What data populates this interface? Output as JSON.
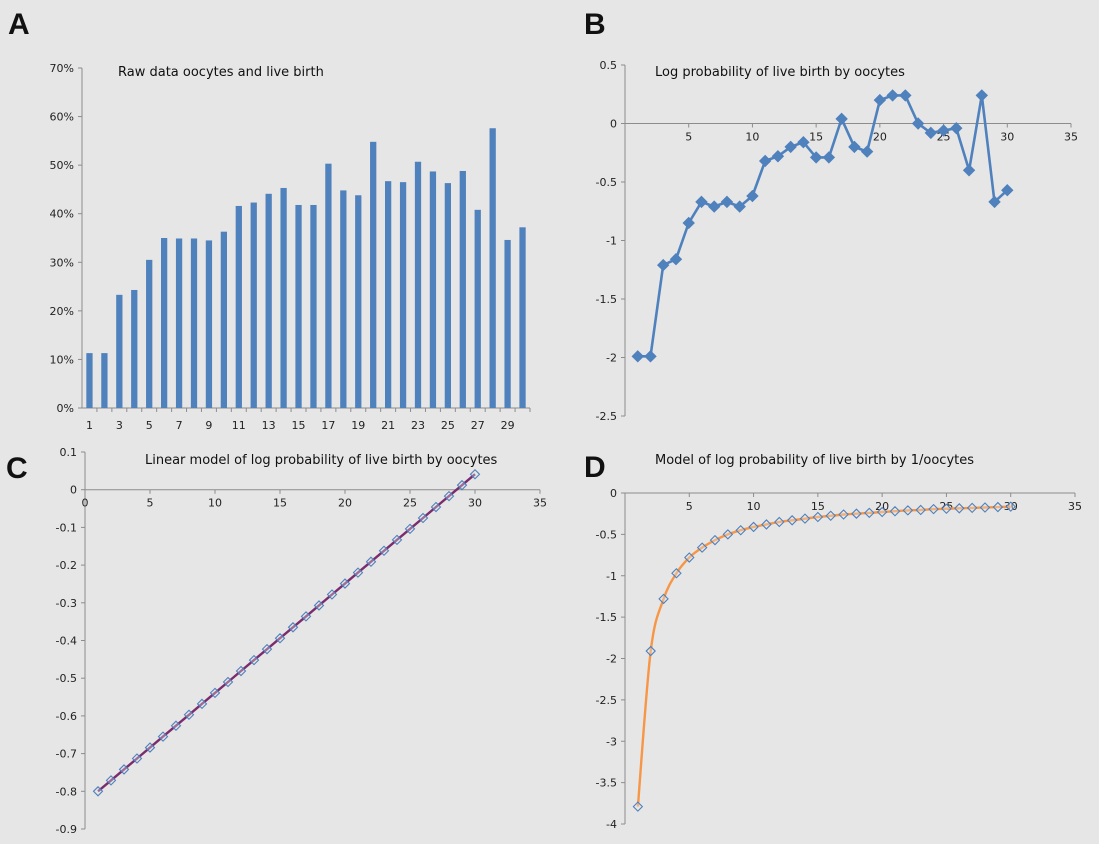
{
  "chart_data": [
    {
      "panel": "A",
      "type": "bar",
      "title": "Raw data oocytes and live birth",
      "xlabel": "",
      "ylabel": "",
      "ylim": [
        0,
        0.7
      ],
      "yticks": [
        "0%",
        "10%",
        "20%",
        "30%",
        "40%",
        "50%",
        "60%",
        "70%"
      ],
      "categories": [
        1,
        2,
        3,
        4,
        5,
        6,
        7,
        8,
        9,
        10,
        11,
        12,
        13,
        14,
        15,
        16,
        17,
        18,
        19,
        20,
        21,
        22,
        23,
        24,
        25,
        26,
        27,
        28,
        29,
        30
      ],
      "x_tick_labels": [
        "1",
        "3",
        "5",
        "7",
        "9",
        "11",
        "13",
        "15",
        "17",
        "19",
        "21",
        "23",
        "25",
        "27",
        "29"
      ],
      "values": [
        0.113,
        0.113,
        0.233,
        0.243,
        0.305,
        0.35,
        0.349,
        0.349,
        0.345,
        0.363,
        0.416,
        0.423,
        0.441,
        0.453,
        0.418,
        0.418,
        0.503,
        0.448,
        0.438,
        0.548,
        0.467,
        0.465,
        0.507,
        0.487,
        0.463,
        0.488,
        0.408,
        0.576,
        0.346,
        0.372
      ],
      "color": "#4f81bd",
      "grid": false
    },
    {
      "panel": "B",
      "type": "line",
      "title": "Log probability of live birth by oocytes",
      "xlabel": "",
      "ylabel": "",
      "xlim": [
        0,
        35
      ],
      "ylim": [
        -2.5,
        0.5
      ],
      "xticks": [
        5,
        10,
        15,
        20,
        25,
        30,
        35
      ],
      "yticks": [
        -2.5,
        -2,
        -1.5,
        -1,
        -0.5,
        0,
        0.5
      ],
      "series": [
        {
          "x": [
            1,
            2,
            3,
            4,
            5,
            6,
            7,
            8,
            9,
            10,
            11,
            12,
            13,
            14,
            15,
            16,
            17,
            18,
            19,
            20,
            21,
            22,
            23,
            24,
            25,
            26,
            27,
            28,
            29,
            30
          ],
          "values": [
            -1.99,
            -1.99,
            -1.21,
            -1.16,
            -0.85,
            -0.67,
            -0.71,
            -0.67,
            -0.71,
            -0.62,
            -0.32,
            -0.28,
            -0.2,
            -0.16,
            -0.29,
            -0.29,
            0.04,
            -0.2,
            -0.24,
            0.2,
            0.24,
            0.24,
            0.0,
            -0.08,
            -0.06,
            -0.04,
            -0.4,
            0.24,
            -0.67,
            -0.57
          ],
          "color": "#4f81bd",
          "marker": "diamond-filled"
        }
      ],
      "grid": false
    },
    {
      "panel": "C",
      "type": "line",
      "title": "Linear model of log probability of live birth by oocytes",
      "xlabel": "",
      "ylabel": "",
      "xlim": [
        0,
        35
      ],
      "ylim": [
        -0.9,
        0.1
      ],
      "xticks": [
        5,
        10,
        15,
        20,
        25,
        30,
        35
      ],
      "yticks": [
        -0.9,
        -0.8,
        -0.7,
        -0.6,
        -0.5,
        -0.4,
        -0.3,
        -0.2,
        -0.1,
        0,
        0.1
      ],
      "series": [
        {
          "x": [
            1,
            2,
            3,
            4,
            5,
            6,
            7,
            8,
            9,
            10,
            11,
            12,
            13,
            14,
            15,
            16,
            17,
            18,
            19,
            20,
            21,
            22,
            23,
            24,
            25,
            26,
            27,
            28,
            29,
            30
          ],
          "values": [
            -0.8,
            -0.771,
            -0.742,
            -0.713,
            -0.684,
            -0.655,
            -0.626,
            -0.597,
            -0.568,
            -0.539,
            -0.51,
            -0.481,
            -0.452,
            -0.423,
            -0.394,
            -0.365,
            -0.336,
            -0.307,
            -0.278,
            -0.249,
            -0.22,
            -0.191,
            -0.162,
            -0.133,
            -0.104,
            -0.075,
            -0.046,
            -0.017,
            0.012,
            0.041
          ],
          "color": "#7b2c6e",
          "marker": "diamond-open"
        }
      ],
      "grid": false
    },
    {
      "panel": "D",
      "type": "line",
      "title": "Model of log probability of live birth by 1/oocytes",
      "xlabel": "",
      "ylabel": "",
      "xlim": [
        0,
        35
      ],
      "ylim": [
        -4,
        0
      ],
      "xticks": [
        5,
        10,
        15,
        20,
        25,
        30,
        35
      ],
      "yticks": [
        -4,
        -3.5,
        -3,
        -2.5,
        -2,
        -1.5,
        -1,
        -0.5,
        0
      ],
      "series": [
        {
          "x": [
            1,
            2,
            3,
            4,
            5,
            6,
            7,
            8,
            9,
            10,
            11,
            12,
            13,
            14,
            15,
            16,
            17,
            18,
            19,
            20,
            21,
            22,
            23,
            24,
            25,
            26,
            27,
            28,
            29,
            30
          ],
          "values": [
            -3.79,
            -1.91,
            -1.28,
            -0.97,
            -0.78,
            -0.66,
            -0.57,
            -0.5,
            -0.45,
            -0.41,
            -0.38,
            -0.35,
            -0.33,
            -0.31,
            -0.29,
            -0.275,
            -0.26,
            -0.25,
            -0.24,
            -0.23,
            -0.22,
            -0.21,
            -0.205,
            -0.195,
            -0.19,
            -0.185,
            -0.18,
            -0.175,
            -0.17,
            -0.165
          ],
          "color": "#f79646",
          "marker": "diamond-open"
        }
      ],
      "grid": false
    }
  ]
}
